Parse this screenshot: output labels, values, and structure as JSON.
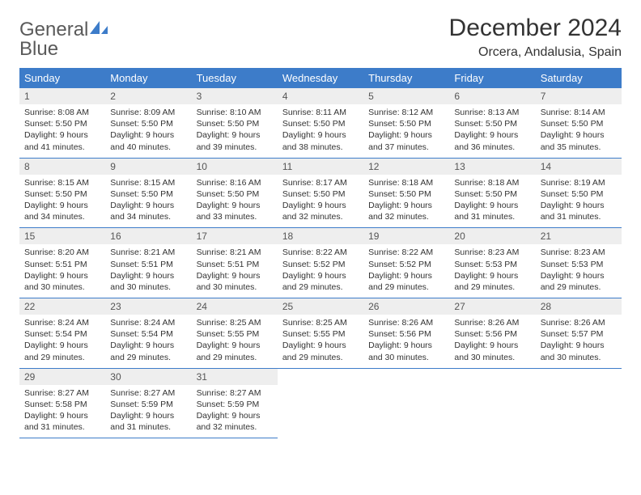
{
  "logo": {
    "text1": "General",
    "text2": "Blue"
  },
  "title": "December 2024",
  "location": "Orcera, Andalusia, Spain",
  "colors": {
    "header_bg": "#3d7cc9",
    "header_fg": "#ffffff",
    "daynum_bg": "#eeeeee",
    "border": "#3d7cc9",
    "page_bg": "#ffffff",
    "text": "#333333"
  },
  "weekdays": [
    "Sunday",
    "Monday",
    "Tuesday",
    "Wednesday",
    "Thursday",
    "Friday",
    "Saturday"
  ],
  "start_weekday": 0,
  "days": [
    {
      "n": 1,
      "sunrise": "8:08 AM",
      "sunset": "5:50 PM",
      "daylight": "9 hours and 41 minutes."
    },
    {
      "n": 2,
      "sunrise": "8:09 AM",
      "sunset": "5:50 PM",
      "daylight": "9 hours and 40 minutes."
    },
    {
      "n": 3,
      "sunrise": "8:10 AM",
      "sunset": "5:50 PM",
      "daylight": "9 hours and 39 minutes."
    },
    {
      "n": 4,
      "sunrise": "8:11 AM",
      "sunset": "5:50 PM",
      "daylight": "9 hours and 38 minutes."
    },
    {
      "n": 5,
      "sunrise": "8:12 AM",
      "sunset": "5:50 PM",
      "daylight": "9 hours and 37 minutes."
    },
    {
      "n": 6,
      "sunrise": "8:13 AM",
      "sunset": "5:50 PM",
      "daylight": "9 hours and 36 minutes."
    },
    {
      "n": 7,
      "sunrise": "8:14 AM",
      "sunset": "5:50 PM",
      "daylight": "9 hours and 35 minutes."
    },
    {
      "n": 8,
      "sunrise": "8:15 AM",
      "sunset": "5:50 PM",
      "daylight": "9 hours and 34 minutes."
    },
    {
      "n": 9,
      "sunrise": "8:15 AM",
      "sunset": "5:50 PM",
      "daylight": "9 hours and 34 minutes."
    },
    {
      "n": 10,
      "sunrise": "8:16 AM",
      "sunset": "5:50 PM",
      "daylight": "9 hours and 33 minutes."
    },
    {
      "n": 11,
      "sunrise": "8:17 AM",
      "sunset": "5:50 PM",
      "daylight": "9 hours and 32 minutes."
    },
    {
      "n": 12,
      "sunrise": "8:18 AM",
      "sunset": "5:50 PM",
      "daylight": "9 hours and 32 minutes."
    },
    {
      "n": 13,
      "sunrise": "8:18 AM",
      "sunset": "5:50 PM",
      "daylight": "9 hours and 31 minutes."
    },
    {
      "n": 14,
      "sunrise": "8:19 AM",
      "sunset": "5:50 PM",
      "daylight": "9 hours and 31 minutes."
    },
    {
      "n": 15,
      "sunrise": "8:20 AM",
      "sunset": "5:51 PM",
      "daylight": "9 hours and 30 minutes."
    },
    {
      "n": 16,
      "sunrise": "8:21 AM",
      "sunset": "5:51 PM",
      "daylight": "9 hours and 30 minutes."
    },
    {
      "n": 17,
      "sunrise": "8:21 AM",
      "sunset": "5:51 PM",
      "daylight": "9 hours and 30 minutes."
    },
    {
      "n": 18,
      "sunrise": "8:22 AM",
      "sunset": "5:52 PM",
      "daylight": "9 hours and 29 minutes."
    },
    {
      "n": 19,
      "sunrise": "8:22 AM",
      "sunset": "5:52 PM",
      "daylight": "9 hours and 29 minutes."
    },
    {
      "n": 20,
      "sunrise": "8:23 AM",
      "sunset": "5:53 PM",
      "daylight": "9 hours and 29 minutes."
    },
    {
      "n": 21,
      "sunrise": "8:23 AM",
      "sunset": "5:53 PM",
      "daylight": "9 hours and 29 minutes."
    },
    {
      "n": 22,
      "sunrise": "8:24 AM",
      "sunset": "5:54 PM",
      "daylight": "9 hours and 29 minutes."
    },
    {
      "n": 23,
      "sunrise": "8:24 AM",
      "sunset": "5:54 PM",
      "daylight": "9 hours and 29 minutes."
    },
    {
      "n": 24,
      "sunrise": "8:25 AM",
      "sunset": "5:55 PM",
      "daylight": "9 hours and 29 minutes."
    },
    {
      "n": 25,
      "sunrise": "8:25 AM",
      "sunset": "5:55 PM",
      "daylight": "9 hours and 29 minutes."
    },
    {
      "n": 26,
      "sunrise": "8:26 AM",
      "sunset": "5:56 PM",
      "daylight": "9 hours and 30 minutes."
    },
    {
      "n": 27,
      "sunrise": "8:26 AM",
      "sunset": "5:56 PM",
      "daylight": "9 hours and 30 minutes."
    },
    {
      "n": 28,
      "sunrise": "8:26 AM",
      "sunset": "5:57 PM",
      "daylight": "9 hours and 30 minutes."
    },
    {
      "n": 29,
      "sunrise": "8:27 AM",
      "sunset": "5:58 PM",
      "daylight": "9 hours and 31 minutes."
    },
    {
      "n": 30,
      "sunrise": "8:27 AM",
      "sunset": "5:59 PM",
      "daylight": "9 hours and 31 minutes."
    },
    {
      "n": 31,
      "sunrise": "8:27 AM",
      "sunset": "5:59 PM",
      "daylight": "9 hours and 32 minutes."
    }
  ],
  "labels": {
    "sunrise": "Sunrise:",
    "sunset": "Sunset:",
    "daylight": "Daylight:"
  }
}
